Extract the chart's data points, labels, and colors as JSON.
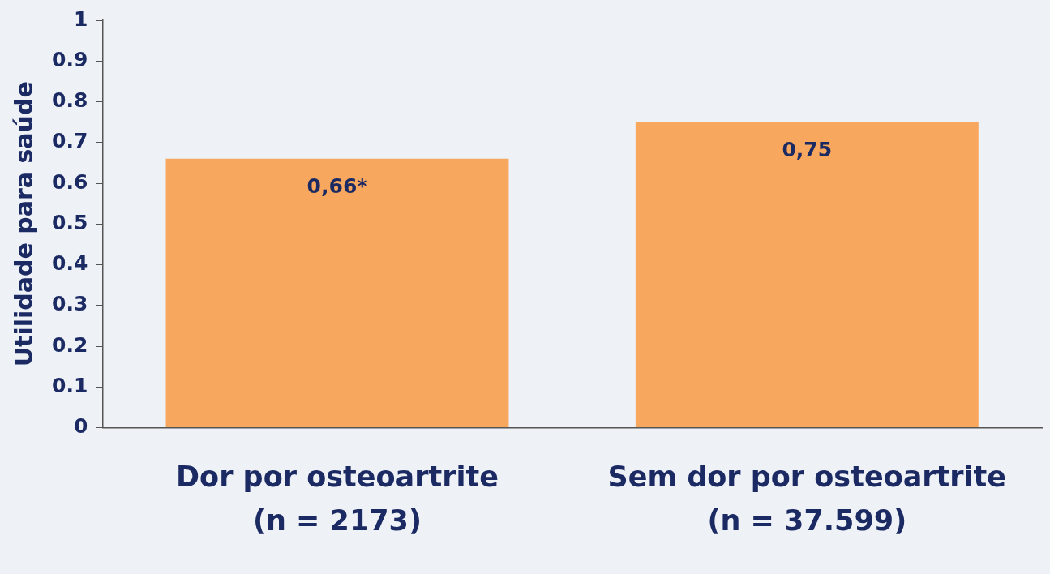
{
  "chart_data": {
    "type": "bar",
    "ylabel": "Utilidade para saúde",
    "categories": [
      "Dor por osteoartrite\n(n = 2173)",
      "Sem dor por osteoartrite\n(n = 37.599)"
    ],
    "values": [
      0.66,
      0.75
    ],
    "color": "#f7a85e",
    "value_labels": [
      "0,66*",
      "0,75"
    ],
    "ylim": [
      0,
      1
    ],
    "yticks": [
      0,
      0.1,
      0.2,
      0.3,
      0.4,
      0.5,
      0.6,
      0.7,
      0.8,
      0.9,
      1
    ],
    "grid": false,
    "legend": false
  }
}
